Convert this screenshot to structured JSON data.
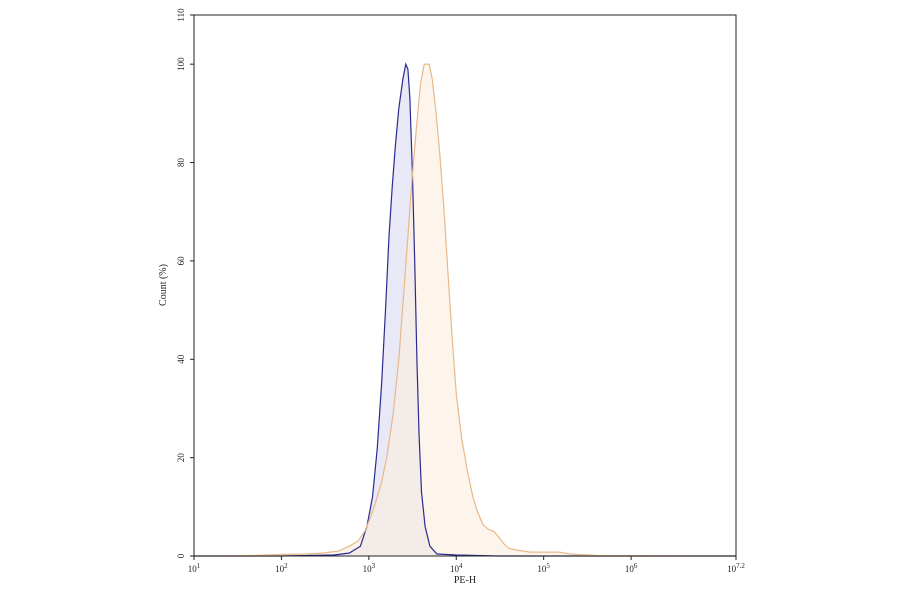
{
  "chart_data": {
    "type": "area",
    "title": "",
    "xlabel": "PE-H",
    "ylabel": "Count (%)",
    "x_scale": "log10",
    "xlim": [
      10,
      15848932
    ],
    "ylim": [
      0,
      110
    ],
    "grid": false,
    "x_ticks": [
      {
        "base": "10",
        "exp": "1"
      },
      {
        "base": "10",
        "exp": "2"
      },
      {
        "base": "10",
        "exp": "3"
      },
      {
        "base": "10",
        "exp": "4"
      },
      {
        "base": "10",
        "exp": "5"
      },
      {
        "base": "10",
        "exp": "6"
      },
      {
        "base": "10",
        "exp": "7.2"
      }
    ],
    "y_ticks": [
      "0",
      "20",
      "40",
      "60",
      "80",
      "100",
      "110"
    ],
    "series": [
      {
        "color": "#2b2b8f",
        "fill": "#d9d9f2",
        "points": [
          [
            10,
            0
          ],
          [
            100,
            0
          ],
          [
            400,
            0.2
          ],
          [
            600,
            0.6
          ],
          [
            800,
            2
          ],
          [
            950,
            6
          ],
          [
            1100,
            12
          ],
          [
            1250,
            22
          ],
          [
            1400,
            35
          ],
          [
            1550,
            50
          ],
          [
            1700,
            65
          ],
          [
            1850,
            75
          ],
          [
            2000,
            83
          ],
          [
            2200,
            91
          ],
          [
            2450,
            97
          ],
          [
            2650,
            100
          ],
          [
            2800,
            99
          ],
          [
            2950,
            93
          ],
          [
            3150,
            78
          ],
          [
            3350,
            60
          ],
          [
            3550,
            40
          ],
          [
            3750,
            25
          ],
          [
            4000,
            13
          ],
          [
            4400,
            6
          ],
          [
            5000,
            2
          ],
          [
            6000,
            0.4
          ],
          [
            10000,
            0.2
          ],
          [
            30000,
            0
          ],
          [
            15848932,
            0
          ]
        ]
      },
      {
        "color": "#e8b88a",
        "fill": "#fbeee0",
        "points": [
          [
            10,
            0
          ],
          [
            50,
            0.1
          ],
          [
            100,
            0.3
          ],
          [
            200,
            0.4
          ],
          [
            300,
            0.6
          ],
          [
            450,
            1
          ],
          [
            600,
            2
          ],
          [
            750,
            3
          ],
          [
            900,
            5
          ],
          [
            1050,
            8
          ],
          [
            1200,
            11
          ],
          [
            1400,
            15
          ],
          [
            1600,
            20
          ],
          [
            1900,
            29
          ],
          [
            2200,
            40
          ],
          [
            2500,
            53
          ],
          [
            2800,
            65
          ],
          [
            3100,
            76
          ],
          [
            3500,
            87
          ],
          [
            3900,
            96
          ],
          [
            4300,
            100
          ],
          [
            4900,
            100
          ],
          [
            5300,
            97
          ],
          [
            5800,
            91
          ],
          [
            6400,
            83
          ],
          [
            7200,
            71
          ],
          [
            8000,
            58
          ],
          [
            9000,
            44
          ],
          [
            10000,
            33
          ],
          [
            11500,
            24
          ],
          [
            13500,
            17
          ],
          [
            15500,
            12
          ],
          [
            17500,
            9
          ],
          [
            20000,
            6.5
          ],
          [
            23000,
            5.5
          ],
          [
            27000,
            5
          ],
          [
            30000,
            4
          ],
          [
            35000,
            2.5
          ],
          [
            40000,
            1.5
          ],
          [
            50000,
            1.2
          ],
          [
            70000,
            0.8
          ],
          [
            100000,
            0.8
          ],
          [
            150000,
            0.8
          ],
          [
            200000,
            0.4
          ],
          [
            400000,
            0.1
          ],
          [
            15848932,
            0
          ]
        ]
      }
    ]
  }
}
